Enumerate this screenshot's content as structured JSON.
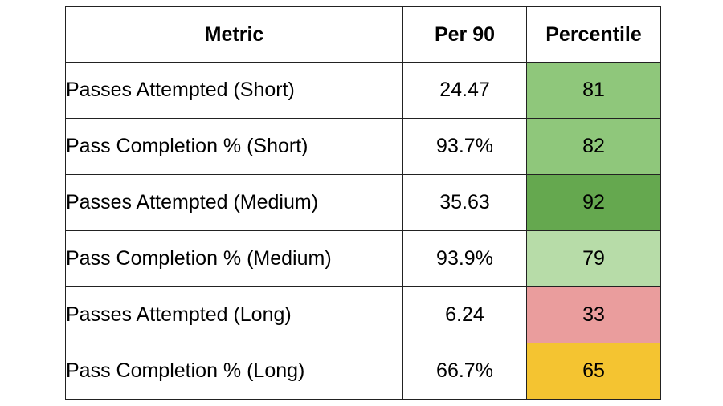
{
  "chart_data": {
    "type": "table",
    "columns": [
      "Metric",
      "Per 90",
      "Percentile"
    ],
    "rows": [
      {
        "metric": "Passes Attempted (Short)",
        "per90": "24.47",
        "percentile": 81,
        "color": "#8fc77b"
      },
      {
        "metric": "Pass Completion % (Short)",
        "per90": "93.7%",
        "percentile": 82,
        "color": "#8fc77b"
      },
      {
        "metric": "Passes Attempted (Medium)",
        "per90": "35.63",
        "percentile": 92,
        "color": "#65a84f"
      },
      {
        "metric": "Pass Completion % (Medium)",
        "per90": "93.9%",
        "percentile": 79,
        "color": "#b7dca8"
      },
      {
        "metric": "Passes Attempted (Long)",
        "per90": "6.24",
        "percentile": 33,
        "color": "#ea9d9d"
      },
      {
        "metric": "Pass Completion % (Long)",
        "per90": "66.7%",
        "percentile": 65,
        "color": "#f4c431"
      }
    ]
  }
}
